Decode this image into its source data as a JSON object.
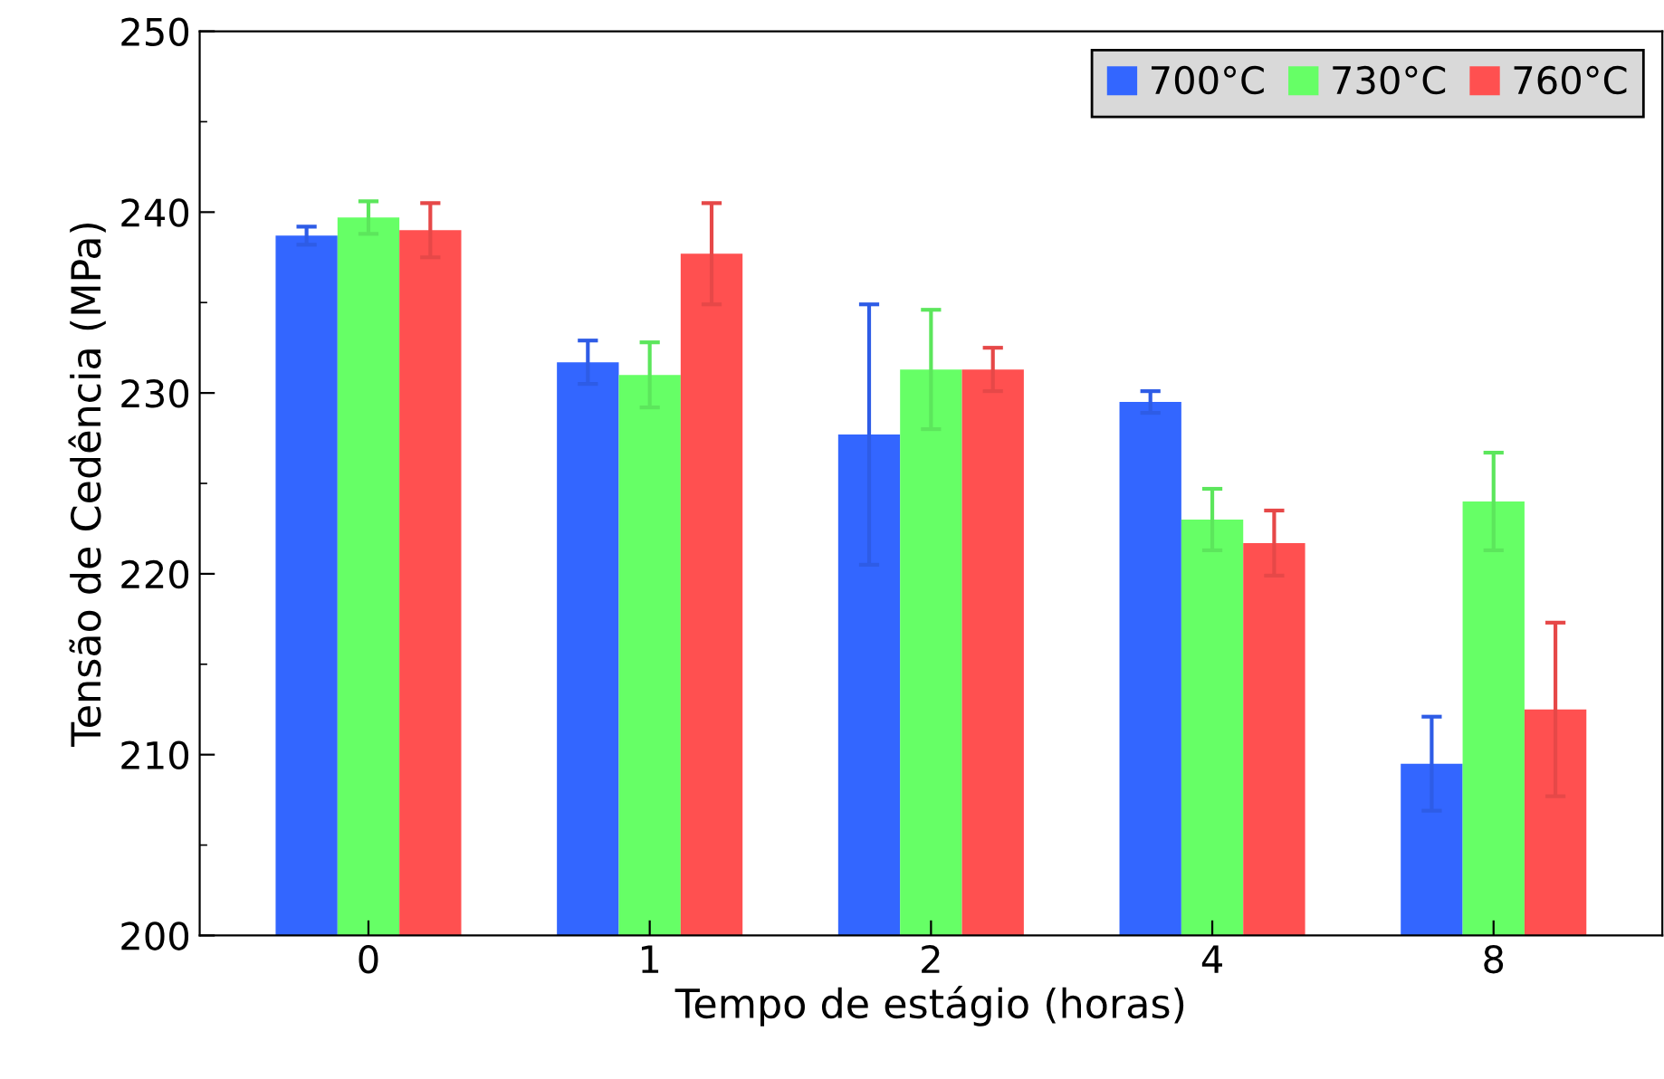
{
  "chart_data": {
    "type": "bar",
    "xlabel": "Tempo de estágio (horas)",
    "ylabel": "Tensão de Cedência (MPa)",
    "categories": [
      "0",
      "1",
      "2",
      "4",
      "8"
    ],
    "series": [
      {
        "name": "700°C",
        "color": "#3366ff",
        "values": [
          238.7,
          231.7,
          227.7,
          229.5,
          209.5
        ],
        "errors": [
          0.5,
          1.2,
          7.2,
          0.6,
          2.6
        ]
      },
      {
        "name": "730°C",
        "color": "#66ff66",
        "values": [
          239.7,
          231.0,
          231.3,
          223.0,
          224.0
        ],
        "errors": [
          0.9,
          1.8,
          3.3,
          1.7,
          2.7
        ]
      },
      {
        "name": "760°C",
        "color": "#ff5050",
        "values": [
          239.0,
          237.7,
          231.3,
          221.7,
          212.5
        ],
        "errors": [
          1.5,
          2.8,
          1.2,
          1.8,
          4.8
        ]
      }
    ],
    "ylim": [
      200,
      250
    ],
    "yticks": [
      200,
      210,
      220,
      230,
      240,
      250
    ],
    "grid": false,
    "legend": "top right"
  }
}
